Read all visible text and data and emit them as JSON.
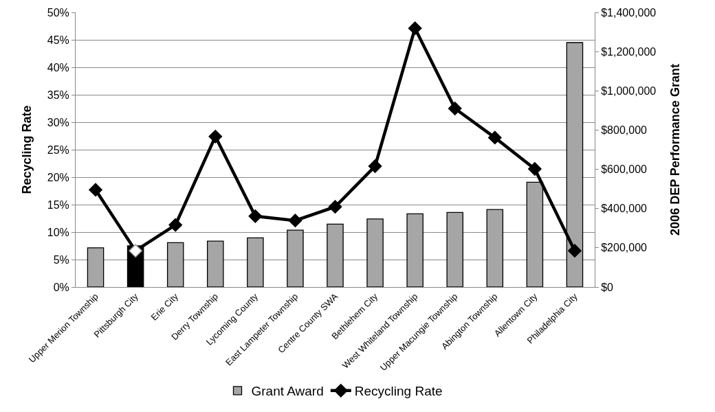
{
  "chart_data": {
    "type": "bar",
    "ylabel": "Recycling Rate",
    "y2label": "2006 DEP Performance Grant",
    "categories": [
      "Upper Merion Township",
      "Pittsburgh City",
      "Erie City",
      "Derry Township",
      "Lycoming County",
      "East Lampeter Township",
      "Centre County SWA",
      "Bethlehem City",
      "West Whiteland Township",
      "Upper Macungie Township",
      "Abington Township",
      "Allentown City",
      "Philadelphia City"
    ],
    "series": [
      {
        "name": "Grant Award",
        "axis": "y2",
        "color": "#a6a6a6",
        "colors": [
          null,
          "#000000",
          null,
          null,
          null,
          null,
          null,
          null,
          null,
          null,
          null,
          null,
          null
        ],
        "values": [
          200000,
          210000,
          226000,
          234000,
          251000,
          290000,
          321000,
          347000,
          373000,
          380000,
          395000,
          534000,
          1246000
        ]
      },
      {
        "name": "Recycling Rate",
        "type": "line",
        "axis": "y",
        "color": "#000000",
        "colors": [
          null,
          "#ffffff",
          null,
          null,
          null,
          null,
          null,
          null,
          null,
          null,
          null,
          null,
          null
        ],
        "marker": "diamond",
        "line_style": "solid",
        "values": [
          17.7,
          6.6,
          11.3,
          27.4,
          12.9,
          12.1,
          14.6,
          22.0,
          47.1,
          32.5,
          27.2,
          21.5,
          6.6
        ]
      }
    ],
    "ylim": [
      0,
      50
    ],
    "yticks": [
      {
        "value": 0,
        "label": "0%"
      },
      {
        "value": 5,
        "label": "5%"
      },
      {
        "value": 10,
        "label": "10%"
      },
      {
        "value": 15,
        "label": "15%"
      },
      {
        "value": 20,
        "label": "20%"
      },
      {
        "value": 25,
        "label": "25%"
      },
      {
        "value": 30,
        "label": "30%"
      },
      {
        "value": 35,
        "label": "35%"
      },
      {
        "value": 40,
        "label": "40%"
      },
      {
        "value": 45,
        "label": "45%"
      },
      {
        "value": 50,
        "label": "50%"
      }
    ],
    "y2lim": [
      0,
      1400000
    ],
    "y2ticks": [
      {
        "value": 0,
        "label": "$0"
      },
      {
        "value": 200000,
        "label": "$200,000"
      },
      {
        "value": 400000,
        "label": "$400,000"
      },
      {
        "value": 600000,
        "label": "$600,000"
      },
      {
        "value": 800000,
        "label": "$800,000"
      },
      {
        "value": 1000000,
        "label": "$1,000,000"
      },
      {
        "value": 1200000,
        "label": "$1,200,000"
      },
      {
        "value": 1400000,
        "label": "$1,400,000"
      }
    ],
    "grid": "y",
    "legend": "bottom"
  }
}
